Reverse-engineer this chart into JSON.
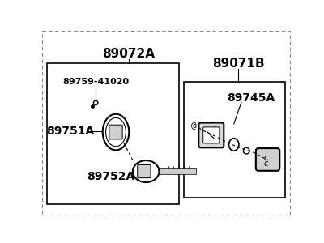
{
  "bg_color": "#f0f0f0",
  "title_89071B": "89071B",
  "title_89072A": "89072A",
  "label_89759": "89759-41020",
  "label_89751": "89751A",
  "label_89752": "89752A",
  "label_89745": "89745A",
  "font_size_main": 10,
  "font_size_small": 8,
  "font_weight": "bold"
}
